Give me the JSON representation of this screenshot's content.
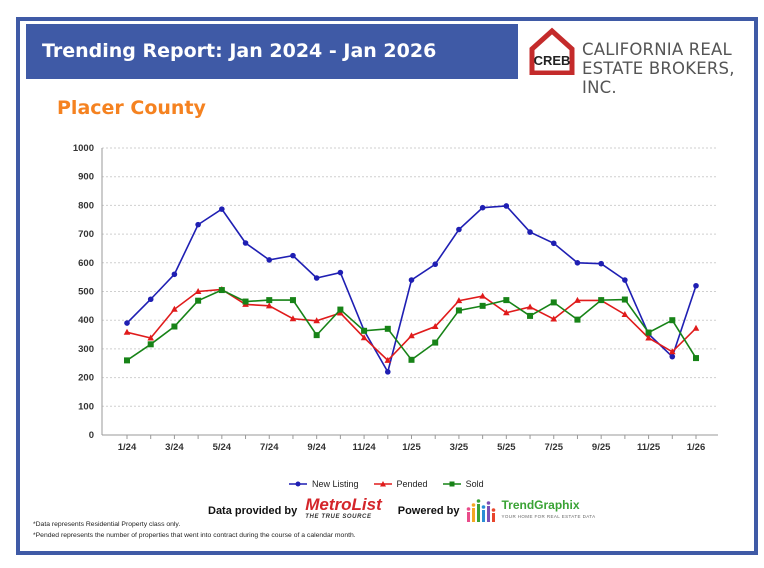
{
  "header": {
    "title": "Trending Report: Jan 2024 - Jan 2026",
    "logo_text": "CREB",
    "company_line1": "CALIFORNIA REAL",
    "company_line2": "ESTATE BROKERS, INC."
  },
  "chart_data": {
    "type": "line",
    "title": "Placer County",
    "y_ticks": [
      0,
      100,
      200,
      300,
      400,
      500,
      600,
      700,
      800,
      900,
      1000
    ],
    "ylim": [
      0,
      1000
    ],
    "x_tick_labels": [
      "1/24",
      "3/24",
      "5/24",
      "7/24",
      "9/24",
      "11/24",
      "1/25",
      "3/25",
      "5/25",
      "7/25",
      "9/25",
      "11/25",
      "1/26"
    ],
    "categories": [
      "1/24",
      "2/24",
      "3/24",
      "4/24",
      "5/24",
      "6/24",
      "7/24",
      "8/24",
      "9/24",
      "10/24",
      "11/24",
      "12/24",
      "1/25",
      "2/25",
      "3/25",
      "4/25",
      "5/25",
      "6/25",
      "7/25",
      "8/25",
      "9/25",
      "10/25",
      "11/25",
      "12/25",
      "1/26"
    ],
    "grid": true,
    "legend_position": "bottom",
    "series": [
      {
        "name": "New Listing",
        "color": "#1f1fb3",
        "marker": "circle",
        "values": [
          390,
          473,
          560,
          733,
          787,
          669,
          610,
          625,
          547,
          566,
          364,
          220,
          540,
          595,
          716,
          792,
          798,
          707,
          668,
          600,
          597,
          540,
          352,
          273,
          520
        ]
      },
      {
        "name": "Pended",
        "color": "#e01b1b",
        "marker": "triangle",
        "values": [
          358,
          338,
          438,
          500,
          507,
          455,
          450,
          405,
          398,
          425,
          339,
          260,
          346,
          378,
          468,
          484,
          426,
          446,
          404,
          469,
          469,
          420,
          338,
          290,
          372
        ]
      },
      {
        "name": "Sold",
        "color": "#178317",
        "marker": "square",
        "values": [
          260,
          316,
          378,
          468,
          505,
          465,
          470,
          470,
          348,
          437,
          363,
          370,
          262,
          322,
          434,
          450,
          470,
          415,
          462,
          402,
          470,
          472,
          357,
          400,
          268
        ]
      }
    ]
  },
  "footer": {
    "data_provided_by": "Data provided by",
    "metrolist": "MetroList",
    "metrolist_tagline": "THE TRUE SOURCE",
    "powered_by": "Powered by",
    "trendgraphix": "TrendGraphix",
    "trendgraphix_tagline": "YOUR HOME FOR REAL ESTATE DATA",
    "note1": "*Data represents Residential Property class only.",
    "note2": "*Pended represents the number of properties that went into contract during the course of a calendar month."
  }
}
